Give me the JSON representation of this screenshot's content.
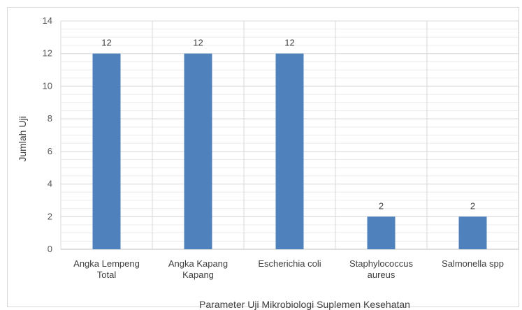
{
  "chart_data": {
    "type": "bar",
    "categories": [
      [
        "Angka Lempeng",
        "Total"
      ],
      [
        "Angka Kapang",
        "Kapang"
      ],
      [
        "Escherichia coli"
      ],
      [
        "Staphylococcus",
        "aureus"
      ],
      [
        "Salmonella spp"
      ]
    ],
    "values": [
      12,
      12,
      12,
      2,
      2
    ],
    "data_labels": [
      "12",
      "12",
      "12",
      "2",
      "2"
    ],
    "title": "",
    "xlabel": "Parameter  Uji Mikrobiologi  Suplemen  Kesehatan",
    "ylabel": "Jumlah  Uji",
    "ylim": [
      0,
      14
    ],
    "yticks": [
      0,
      2,
      4,
      6,
      8,
      10,
      12,
      14
    ],
    "grid": true,
    "minor_grid": true,
    "bar_color": "#4f81bd",
    "grid_color": "#d9d9d9",
    "minor_grid_color": "#ececec"
  }
}
